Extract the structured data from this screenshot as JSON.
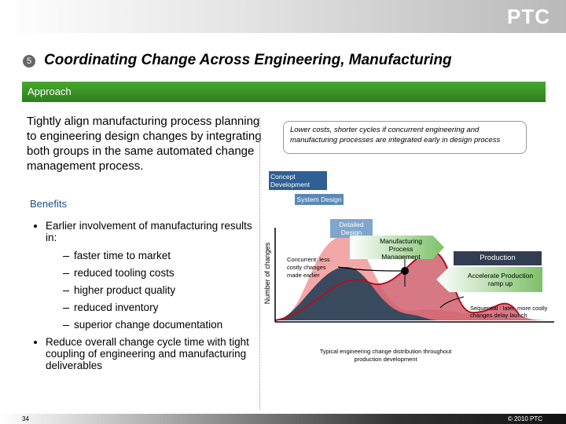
{
  "header": {
    "logo": "PTC",
    "slide_number": "5",
    "title": "Coordinating Change Across Engineering, Manufacturing"
  },
  "section": "Approach",
  "intro": "Tightly align manufacturing process planning to engineering design changes by integrating both groups in the same automated change management process.",
  "benefits": {
    "heading": "Benefits",
    "items": [
      {
        "text": "Earlier involvement of manufacturing results in:",
        "subitems": [
          "faster time to market",
          "reduced tooling costs",
          "higher product quality",
          "reduced inventory",
          "superior change documentation"
        ]
      },
      {
        "text": "Reduce overall change cycle time with tight coupling of engineering and manufacturing deliverables"
      }
    ]
  },
  "diagram": {
    "callout": "Lower costs, shorter cycles if concurrent engineering and manufacturing processes are integrated early in design process",
    "phases": [
      "Concept Development",
      "System Design",
      "Detailed Design",
      "Manufacturing Process Management",
      "Production",
      "Accelerate Production ramp up"
    ],
    "y_axis_label": "Number of changes",
    "concurrent_note": "Concurrent: less costly changes made earlier",
    "sequential_note": "Sequential : later, more costly changes delay launch",
    "caption": "Typical engineering change distribution throughout production development"
  },
  "footer": {
    "page": "34",
    "copyright": "© 2010 PTC"
  }
}
